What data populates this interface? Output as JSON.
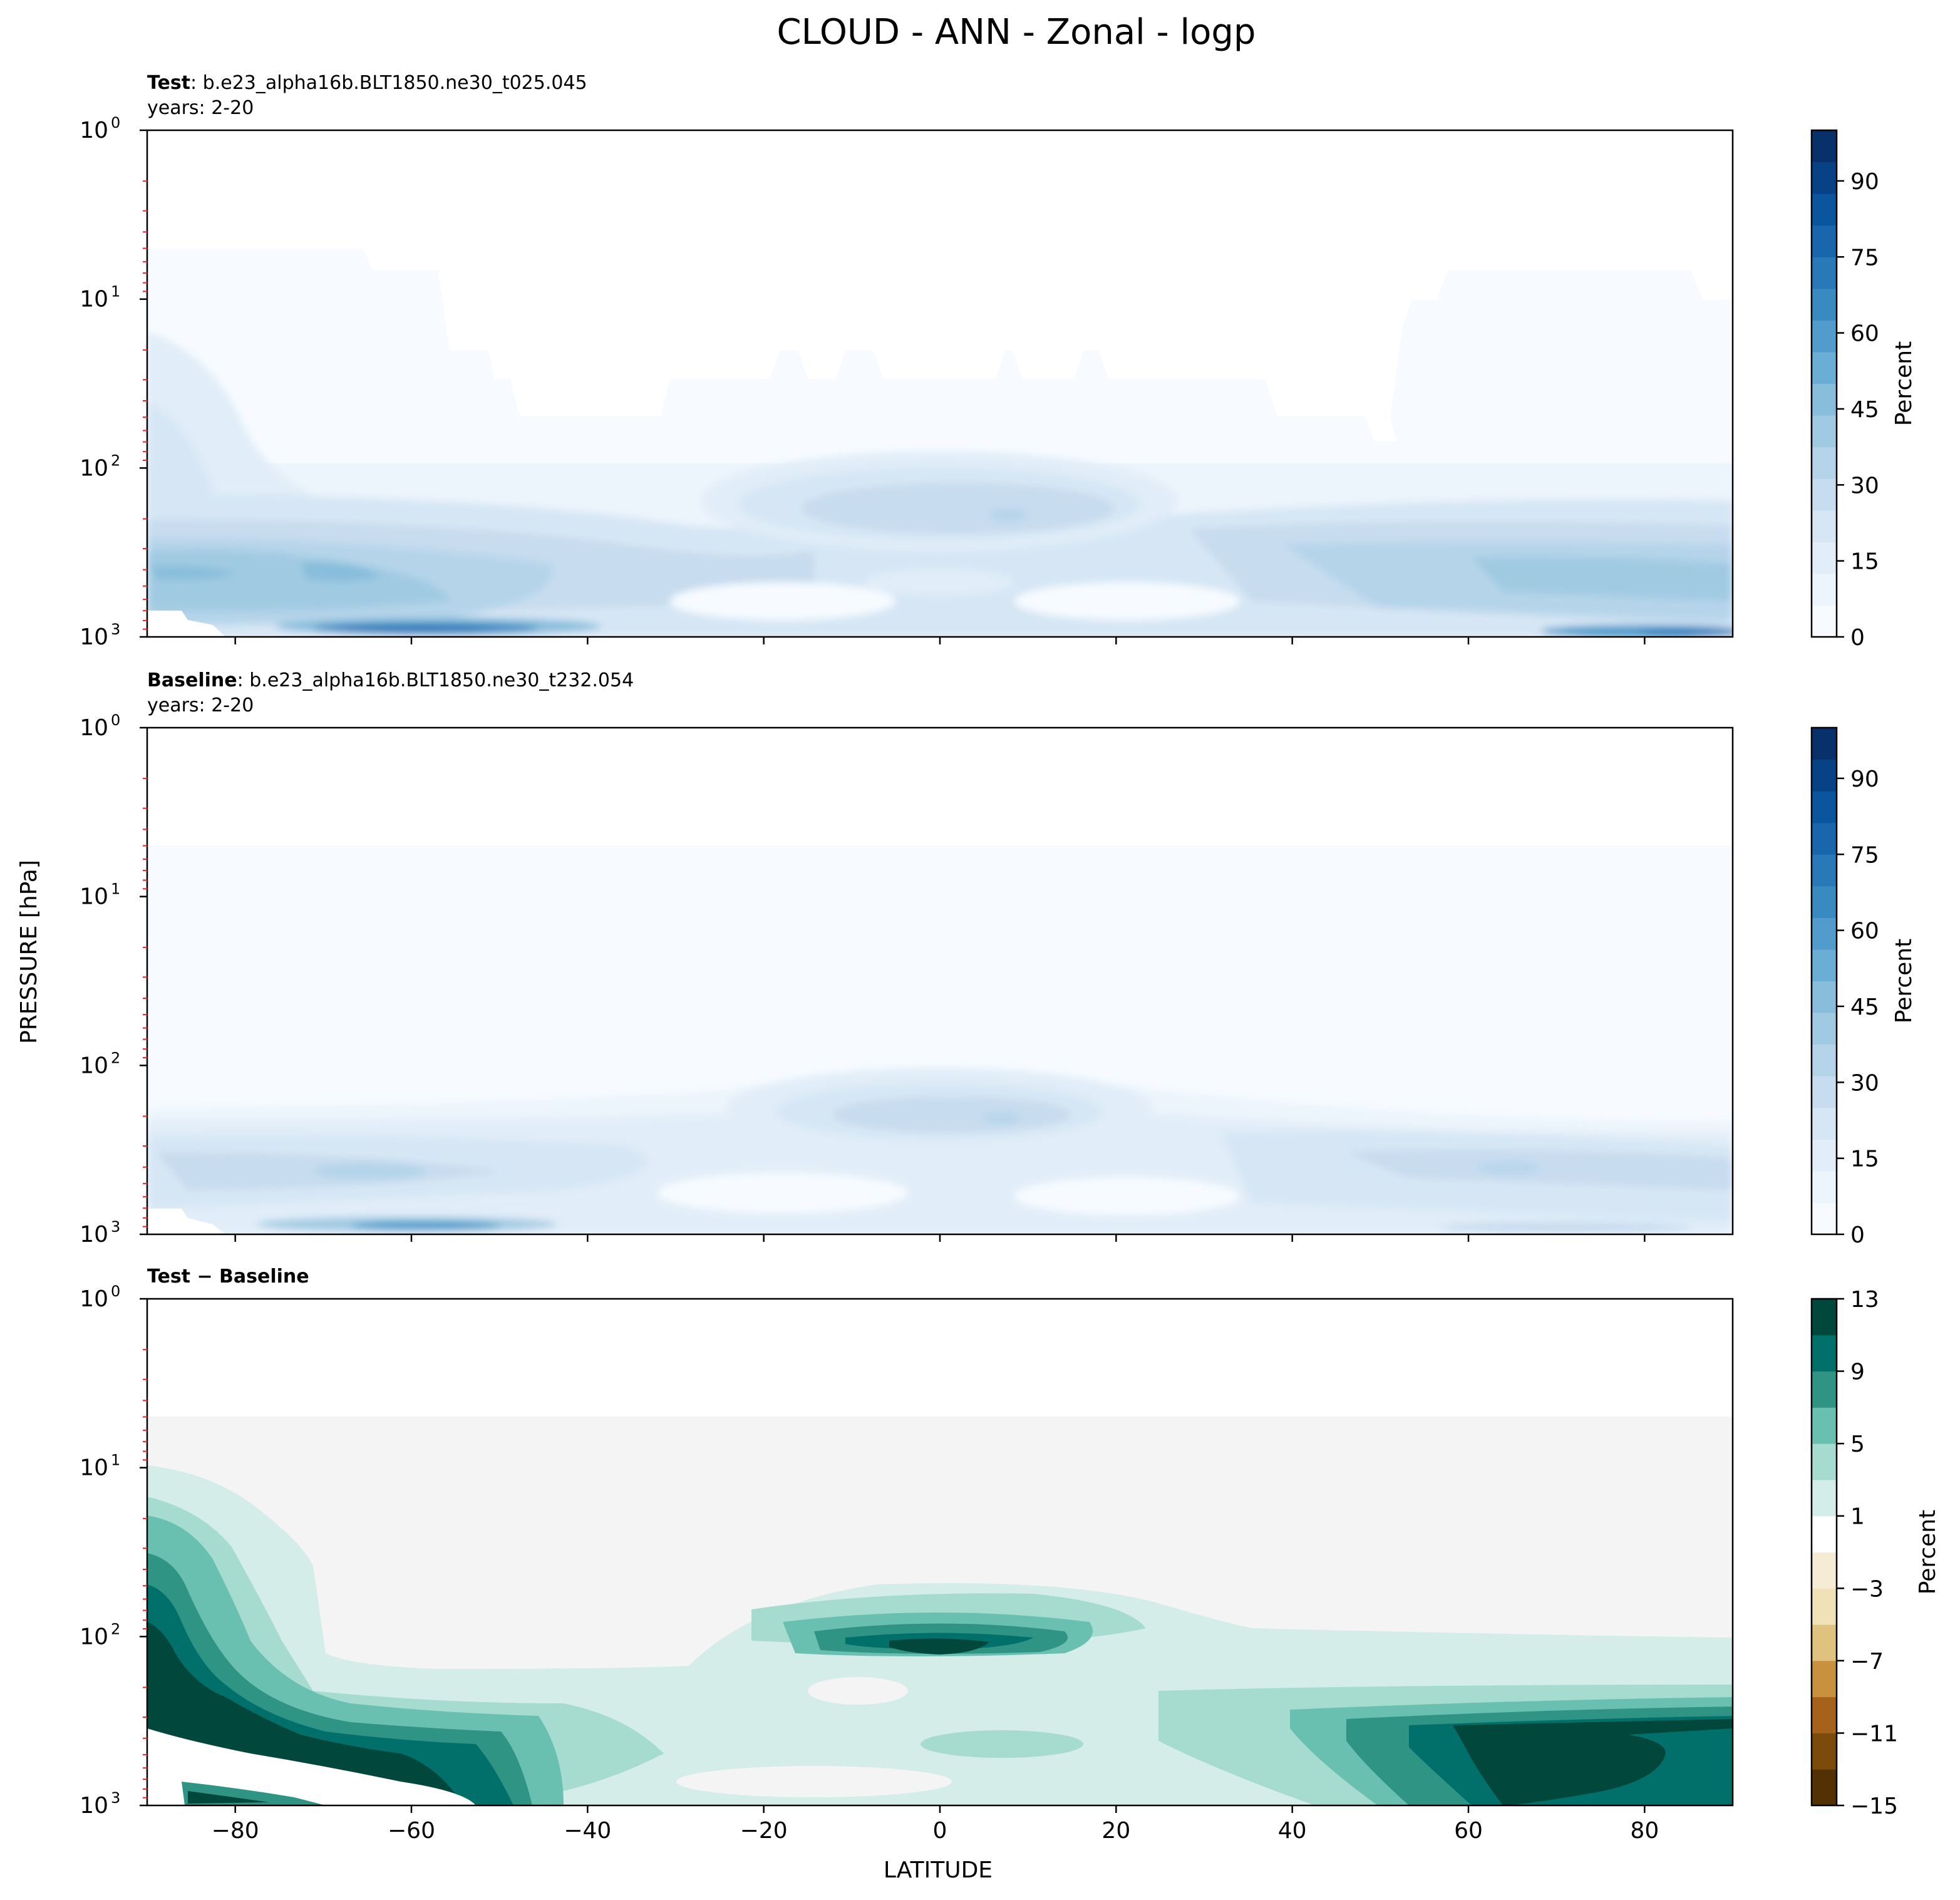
{
  "figure": {
    "title": "CLOUD - ANN - Zonal - logp",
    "ylabel": "PRESSURE [hPa]",
    "xlabel": "LATITUDE"
  },
  "colors": {
    "blues": [
      "#f7fbff",
      "#ecf4fc",
      "#e1edf8",
      "#d6e6f4",
      "#c7dcef",
      "#b5d4e9",
      "#a0cae2",
      "#88bedc",
      "#6aaed6",
      "#519ccc",
      "#3a8ac2",
      "#2979b9",
      "#1966ad",
      "#0b559f",
      "#084286",
      "#08306b"
    ],
    "brbg": [
      "#543005",
      "#7c4a0a",
      "#a6611a",
      "#c8913e",
      "#dfc27d",
      "#f0e2b6",
      "#f6ecd6",
      "#ffffff",
      "#d5ede8",
      "#a6dccf",
      "#6ac0b0",
      "#2f9484",
      "#02706a",
      "#01473c"
    ],
    "diff_bg": "#f3f4f3",
    "ticks_minor": "#e8212b"
  },
  "chart_data": [
    {
      "type": "heatmap",
      "panel": "test",
      "label_bold": "Test",
      "label_text": ": b.e23_alpha16b.BLT1850.ne30_t025.045",
      "years": "years: 2-20",
      "xlim": [
        -90,
        90
      ],
      "ylim": [
        1000,
        1
      ],
      "yscale": "log",
      "y_ticks": [
        "10",
        "10",
        "10",
        "10"
      ],
      "y_tick_exps": [
        "0",
        "1",
        "2",
        "3"
      ],
      "x_ticks": [
        "−80",
        "−60",
        "−40",
        "−20",
        "0",
        "20",
        "40",
        "60",
        "80"
      ],
      "colorbar": {
        "label": "Percent",
        "ticks": [
          "0",
          "15",
          "30",
          "45",
          "60",
          "75",
          "90"
        ],
        "range": [
          0,
          100
        ]
      },
      "fields": {
        "lowcloud": [
          {
            "lat": -85,
            "p": 600,
            "value": 34
          },
          {
            "lat": -55,
            "p": 500,
            "value": 36
          },
          {
            "lat": -30,
            "p": 600,
            "value": 22
          },
          {
            "lat": 0,
            "p": 180,
            "value": 24
          },
          {
            "lat": 65,
            "p": 380,
            "value": 28
          }
        ],
        "sfc_band": [
          {
            "lat": -60,
            "p": 930,
            "value": 74
          },
          {
            "lat": 80,
            "p": 960,
            "value": 64
          }
        ],
        "strat_boundary_lat": [
          -87,
          -68,
          -64,
          -58,
          -48,
          -30,
          -20,
          -10,
          5,
          20,
          40,
          50,
          55,
          62,
          87
        ],
        "strat_boundary_p": [
          5,
          5,
          6,
          20,
          50,
          30,
          20,
          30,
          20,
          30,
          50,
          70,
          10,
          7,
          7
        ]
      }
    },
    {
      "type": "heatmap",
      "panel": "baseline",
      "label_bold": "Baseline",
      "label_text": ": b.e23_alpha16b.BLT1850.ne30_t232.054",
      "years": "years: 2-20",
      "xlim": [
        -90,
        90
      ],
      "ylim": [
        1000,
        1
      ],
      "yscale": "log",
      "y_ticks": [
        "10",
        "10",
        "10",
        "10"
      ],
      "y_tick_exps": [
        "0",
        "1",
        "2",
        "3"
      ],
      "x_ticks": [
        "−80",
        "−60",
        "−40",
        "−20",
        "0",
        "20",
        "40",
        "60",
        "80"
      ],
      "colorbar": {
        "label": "Percent",
        "ticks": [
          "0",
          "15",
          "30",
          "45",
          "60",
          "75",
          "90"
        ],
        "range": [
          0,
          100
        ]
      },
      "fields": {
        "lowcloud": [
          {
            "lat": -70,
            "p": 500,
            "value": 24
          },
          {
            "lat": 0,
            "p": 180,
            "value": 20
          },
          {
            "lat": 60,
            "p": 450,
            "value": 20
          }
        ],
        "sfc_band": [
          {
            "lat": -58,
            "p": 920,
            "value": 50
          }
        ]
      }
    },
    {
      "type": "heatmap",
      "panel": "diff",
      "label_bold": "Test − Baseline",
      "xlim": [
        -90,
        90
      ],
      "ylim": [
        1000,
        1
      ],
      "yscale": "log",
      "y_ticks": [
        "10",
        "10",
        "10",
        "10"
      ],
      "y_tick_exps": [
        "0",
        "1",
        "2",
        "3"
      ],
      "x_ticks": [
        "−80",
        "−60",
        "−40",
        "−20",
        "0",
        "20",
        "40",
        "60",
        "80"
      ],
      "colorbar": {
        "label": "Percent",
        "ticks": [
          "13",
          "9",
          "5",
          "1",
          "−3",
          "−7",
          "−11",
          "−15"
        ],
        "range": [
          -15,
          13
        ]
      },
      "fields": {
        "diff_regions": [
          {
            "lat": -85,
            "p": 40,
            "value": 13
          },
          {
            "lat": 0,
            "p": 120,
            "value": 13
          },
          {
            "lat": 70,
            "p": 550,
            "value": 13
          },
          {
            "lat": -50,
            "p": 600,
            "value": 11
          }
        ]
      }
    }
  ]
}
